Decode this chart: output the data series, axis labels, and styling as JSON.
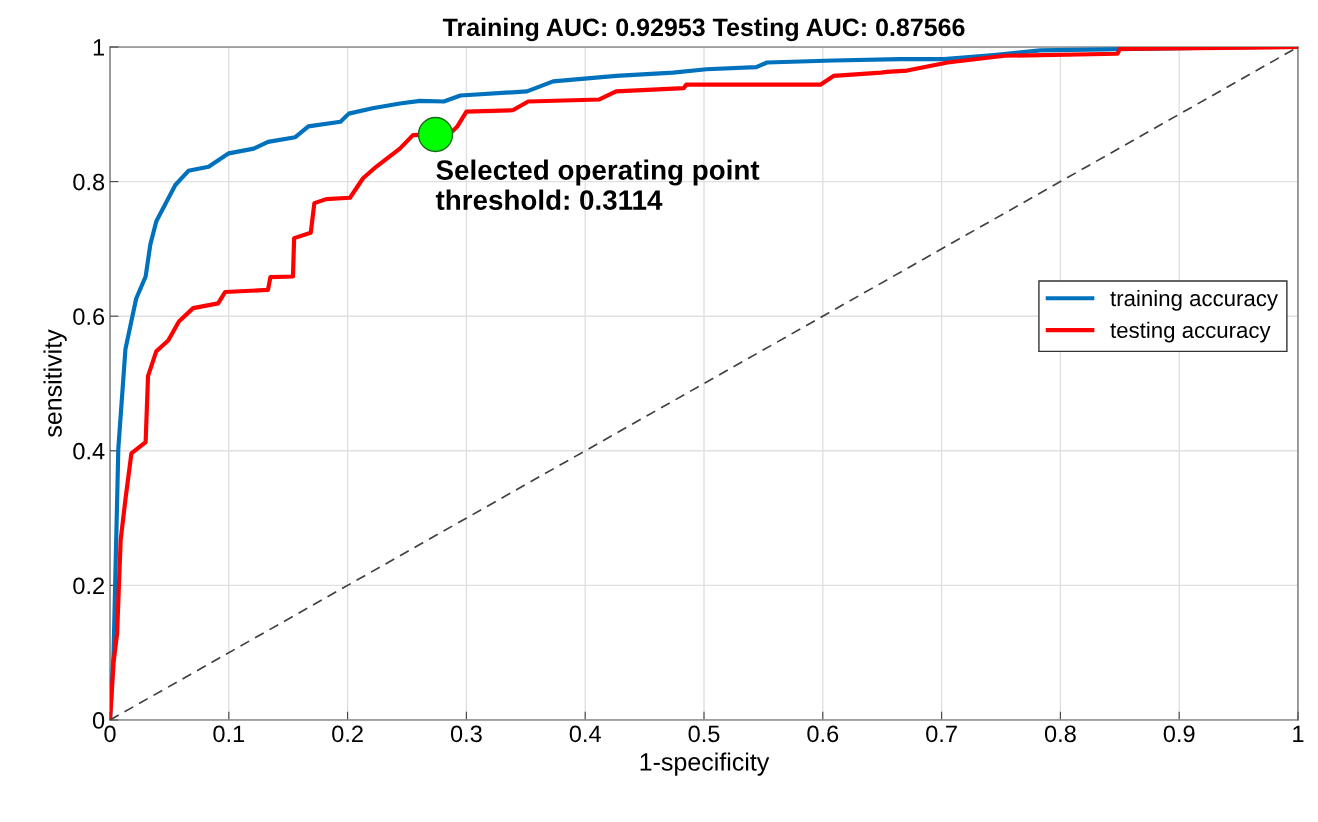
{
  "chart_data": {
    "type": "line",
    "title": "Training AUC: 0.92953 Testing AUC: 0.87566",
    "xlabel": "1-specificity",
    "ylabel": "sensitivity",
    "xlim": [
      0,
      1
    ],
    "ylim": [
      0,
      1
    ],
    "xticks": [
      0,
      0.1,
      0.2,
      0.3,
      0.4,
      0.5,
      0.6,
      0.7,
      0.8,
      0.9,
      1
    ],
    "yticks": [
      0,
      0.2,
      0.4,
      0.6,
      0.8,
      1
    ],
    "grid": true,
    "legend": "right",
    "marker": "none",
    "series": [
      {
        "name": "training accuracy",
        "color": "#0072bd",
        "x": [
          0,
          0.003,
          0.007,
          0.013,
          0.022,
          0.03,
          0.034,
          0.039,
          0.055,
          0.066,
          0.083,
          0.1,
          0.121,
          0.133,
          0.156,
          0.167,
          0.194,
          0.201,
          0.221,
          0.244,
          0.261,
          0.281,
          0.295,
          0.351,
          0.373,
          0.426,
          0.474,
          0.502,
          0.544,
          0.553,
          0.609,
          0.665,
          0.702,
          0.744,
          0.783,
          0.97,
          1
        ],
        "values": [
          0,
          0.099,
          0.403,
          0.551,
          0.626,
          0.659,
          0.707,
          0.741,
          0.795,
          0.816,
          0.822,
          0.842,
          0.849,
          0.859,
          0.866,
          0.882,
          0.889,
          0.901,
          0.909,
          0.916,
          0.92,
          0.919,
          0.928,
          0.934,
          0.949,
          0.957,
          0.962,
          0.967,
          0.97,
          0.977,
          0.98,
          0.982,
          0.982,
          0.988,
          0.995,
          1,
          1
        ]
      },
      {
        "name": "testing accuracy",
        "color": "#ff0000",
        "x": [
          0,
          0.003,
          0.006,
          0.009,
          0.013,
          0.018,
          0.03,
          0.032,
          0.039,
          0.049,
          0.058,
          0.07,
          0.091,
          0.097,
          0.133,
          0.135,
          0.154,
          0.155,
          0.169,
          0.172,
          0.182,
          0.202,
          0.213,
          0.224,
          0.244,
          0.255,
          0.286,
          0.292,
          0.3,
          0.339,
          0.352,
          0.412,
          0.426,
          0.483,
          0.485,
          0.598,
          0.609,
          0.649,
          0.654,
          0.671,
          0.705,
          0.753,
          0.848,
          0.85,
          1
        ],
        "values": [
          0,
          0.085,
          0.129,
          0.268,
          0.328,
          0.396,
          0.413,
          0.511,
          0.548,
          0.564,
          0.592,
          0.612,
          0.619,
          0.636,
          0.639,
          0.658,
          0.659,
          0.716,
          0.724,
          0.768,
          0.774,
          0.776,
          0.805,
          0.822,
          0.849,
          0.869,
          0.871,
          0.881,
          0.904,
          0.906,
          0.919,
          0.922,
          0.934,
          0.939,
          0.944,
          0.944,
          0.957,
          0.962,
          0.963,
          0.965,
          0.977,
          0.987,
          0.99,
          0.997,
          1
        ]
      },
      {
        "color": "#404040",
        "line_style": "dashed",
        "x": [
          0,
          1
        ],
        "values": [
          0,
          1
        ]
      },
      {
        "type": "scatter",
        "color": "#00ff00",
        "marker": "circle",
        "x": [
          0.274
        ],
        "values": [
          0.87
        ]
      }
    ],
    "annotations": [
      {
        "text": "Selected operating point\nthreshold: 0.3114",
        "x": 0.274,
        "y": 0.87
      }
    ]
  }
}
